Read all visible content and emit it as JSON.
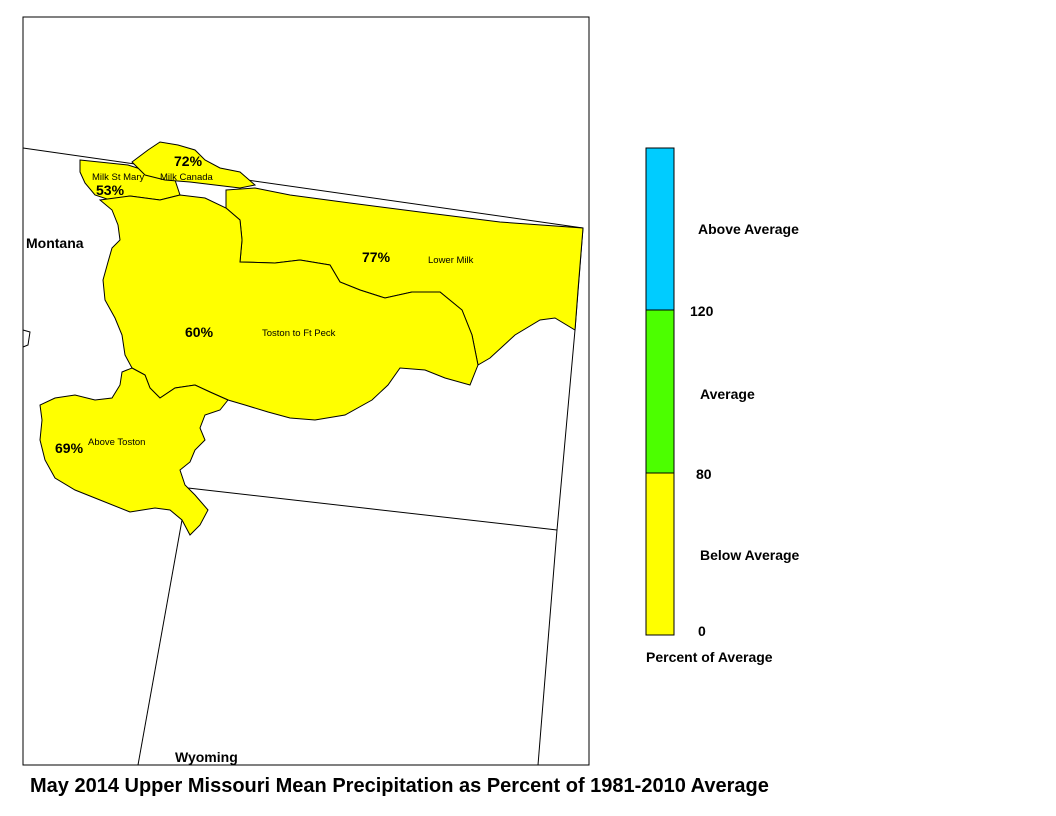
{
  "title": "May 2014 Upper Missouri Mean Precipitation as Percent of 1981-2010 Average",
  "map": {
    "states": [
      {
        "name": "Montana"
      },
      {
        "name": "Wyoming"
      }
    ],
    "basins": [
      {
        "name": "Milk St Mary",
        "percent": "53%",
        "category": "Below Average"
      },
      {
        "name": "Milk Canada",
        "percent": "72%",
        "category": "Below Average"
      },
      {
        "name": "Lower Milk",
        "percent": "77%",
        "category": "Below Average"
      },
      {
        "name": "Toston to Ft Peck",
        "percent": "60%",
        "category": "Below Average"
      },
      {
        "name": "Above Toston",
        "percent": "69%",
        "category": "Below Average"
      }
    ]
  },
  "legend": {
    "title": "Percent of Average",
    "classes": [
      {
        "label": "Above Average",
        "color": "#00ccff",
        "range": "> 120"
      },
      {
        "label": "Average",
        "color": "#4cff00",
        "range": "80 - 120"
      },
      {
        "label": "Below Average",
        "color": "#ffff00",
        "range": "0 - 80"
      }
    ],
    "breaks": [
      "120",
      "80",
      "0"
    ]
  }
}
